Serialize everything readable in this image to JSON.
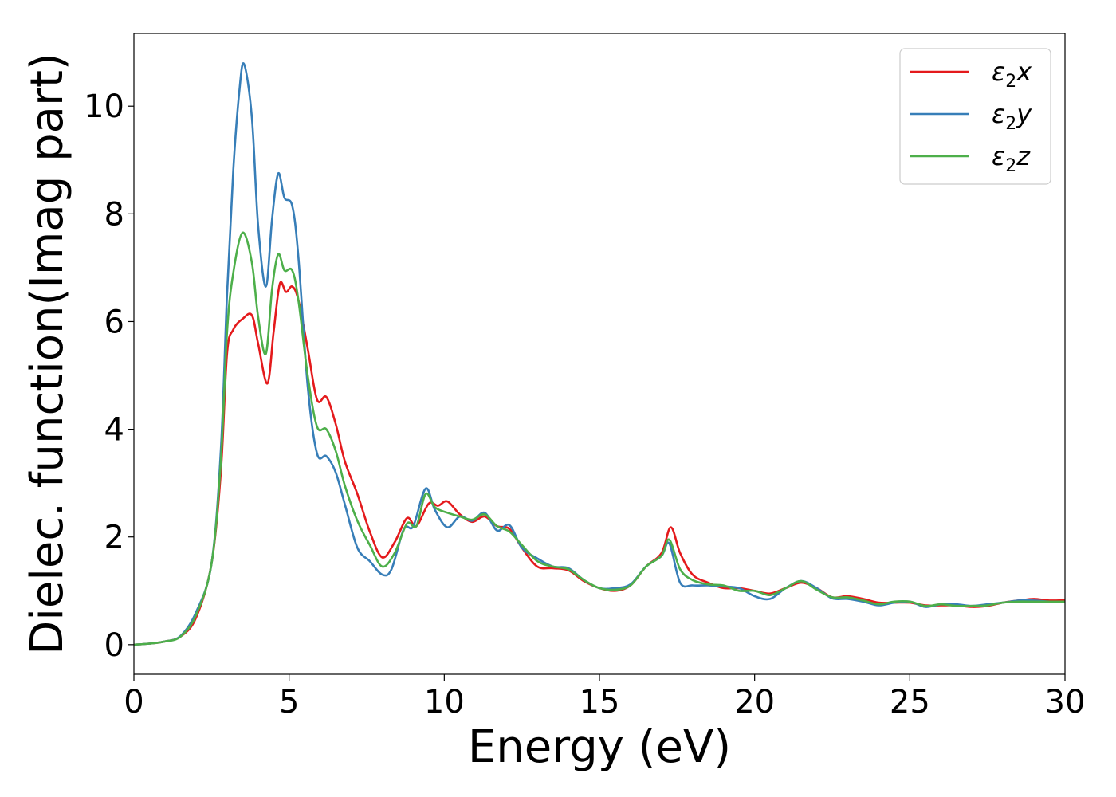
{
  "chart_data": {
    "type": "line",
    "title": "",
    "xlabel": "Energy (eV)",
    "ylabel": "Dielec. function(Imag part)",
    "xlim": [
      0,
      30
    ],
    "ylim": [
      -0.55,
      11.35
    ],
    "xticks": [
      0,
      5,
      10,
      15,
      20,
      25,
      30
    ],
    "yticks": [
      0,
      2,
      4,
      6,
      8,
      10
    ],
    "grid": false,
    "legend_position": "top-right",
    "series": [
      {
        "name": "ε2x",
        "legend_base": "ε",
        "legend_sub": "2",
        "legend_var": "x",
        "color": "#e41a1c",
        "points": [
          [
            0,
            0
          ],
          [
            0.5,
            0.02
          ],
          [
            1,
            0.06
          ],
          [
            1.5,
            0.15
          ],
          [
            2,
            0.5
          ],
          [
            2.5,
            1.5
          ],
          [
            2.8,
            3.2
          ],
          [
            3.0,
            5.4
          ],
          [
            3.2,
            5.85
          ],
          [
            3.5,
            6.05
          ],
          [
            3.8,
            6.12
          ],
          [
            4.0,
            5.6
          ],
          [
            4.3,
            4.85
          ],
          [
            4.5,
            5.8
          ],
          [
            4.7,
            6.7
          ],
          [
            4.9,
            6.55
          ],
          [
            5.1,
            6.65
          ],
          [
            5.3,
            6.4
          ],
          [
            5.6,
            5.5
          ],
          [
            5.9,
            4.55
          ],
          [
            6.2,
            4.6
          ],
          [
            6.5,
            4.1
          ],
          [
            6.8,
            3.4
          ],
          [
            7.2,
            2.8
          ],
          [
            7.6,
            2.1
          ],
          [
            8.0,
            1.62
          ],
          [
            8.4,
            1.9
          ],
          [
            8.8,
            2.35
          ],
          [
            9.1,
            2.2
          ],
          [
            9.5,
            2.62
          ],
          [
            9.8,
            2.58
          ],
          [
            10.1,
            2.66
          ],
          [
            10.5,
            2.42
          ],
          [
            10.9,
            2.28
          ],
          [
            11.3,
            2.38
          ],
          [
            11.7,
            2.2
          ],
          [
            12.1,
            2.15
          ],
          [
            12.5,
            1.8
          ],
          [
            13.0,
            1.45
          ],
          [
            13.5,
            1.42
          ],
          [
            14.0,
            1.38
          ],
          [
            14.5,
            1.18
          ],
          [
            15.0,
            1.05
          ],
          [
            15.5,
            1.0
          ],
          [
            16.0,
            1.1
          ],
          [
            16.5,
            1.45
          ],
          [
            17.0,
            1.7
          ],
          [
            17.3,
            2.18
          ],
          [
            17.6,
            1.7
          ],
          [
            18.0,
            1.3
          ],
          [
            18.5,
            1.15
          ],
          [
            19.0,
            1.05
          ],
          [
            19.5,
            1.05
          ],
          [
            20.0,
            1.0
          ],
          [
            20.5,
            0.95
          ],
          [
            21.0,
            1.05
          ],
          [
            21.5,
            1.15
          ],
          [
            22.0,
            1.05
          ],
          [
            22.5,
            0.88
          ],
          [
            23.0,
            0.9
          ],
          [
            23.5,
            0.85
          ],
          [
            24.0,
            0.78
          ],
          [
            24.5,
            0.78
          ],
          [
            25.0,
            0.78
          ],
          [
            25.5,
            0.73
          ],
          [
            26.0,
            0.73
          ],
          [
            26.5,
            0.73
          ],
          [
            27.0,
            0.7
          ],
          [
            27.5,
            0.72
          ],
          [
            28.0,
            0.78
          ],
          [
            28.5,
            0.82
          ],
          [
            29.0,
            0.85
          ],
          [
            29.5,
            0.82
          ],
          [
            30.0,
            0.83
          ]
        ]
      },
      {
        "name": "ε2y",
        "legend_base": "ε",
        "legend_sub": "2",
        "legend_var": "y",
        "color": "#377eb8",
        "points": [
          [
            0,
            0
          ],
          [
            0.5,
            0.02
          ],
          [
            1,
            0.06
          ],
          [
            1.5,
            0.16
          ],
          [
            2,
            0.6
          ],
          [
            2.5,
            1.5
          ],
          [
            2.8,
            3.6
          ],
          [
            3.0,
            6.5
          ],
          [
            3.2,
            8.8
          ],
          [
            3.4,
            10.3
          ],
          [
            3.55,
            10.78
          ],
          [
            3.8,
            9.8
          ],
          [
            4.0,
            7.8
          ],
          [
            4.25,
            6.65
          ],
          [
            4.45,
            7.9
          ],
          [
            4.65,
            8.75
          ],
          [
            4.85,
            8.3
          ],
          [
            5.1,
            8.15
          ],
          [
            5.3,
            7.2
          ],
          [
            5.6,
            4.8
          ],
          [
            5.9,
            3.55
          ],
          [
            6.2,
            3.5
          ],
          [
            6.5,
            3.2
          ],
          [
            6.8,
            2.6
          ],
          [
            7.2,
            1.8
          ],
          [
            7.6,
            1.55
          ],
          [
            8.0,
            1.3
          ],
          [
            8.3,
            1.4
          ],
          [
            8.7,
            2.15
          ],
          [
            9.0,
            2.2
          ],
          [
            9.4,
            2.9
          ],
          [
            9.7,
            2.5
          ],
          [
            10.1,
            2.18
          ],
          [
            10.5,
            2.38
          ],
          [
            10.9,
            2.3
          ],
          [
            11.3,
            2.45
          ],
          [
            11.7,
            2.12
          ],
          [
            12.1,
            2.22
          ],
          [
            12.5,
            1.8
          ],
          [
            13.0,
            1.6
          ],
          [
            13.5,
            1.45
          ],
          [
            14.0,
            1.42
          ],
          [
            14.5,
            1.2
          ],
          [
            15.0,
            1.05
          ],
          [
            15.5,
            1.05
          ],
          [
            16.0,
            1.12
          ],
          [
            16.5,
            1.45
          ],
          [
            17.0,
            1.65
          ],
          [
            17.25,
            1.88
          ],
          [
            17.6,
            1.15
          ],
          [
            18.0,
            1.1
          ],
          [
            18.5,
            1.1
          ],
          [
            19.0,
            1.08
          ],
          [
            19.5,
            1.05
          ],
          [
            20.0,
            0.9
          ],
          [
            20.5,
            0.85
          ],
          [
            21.0,
            1.05
          ],
          [
            21.5,
            1.18
          ],
          [
            22.0,
            1.05
          ],
          [
            22.5,
            0.86
          ],
          [
            23.0,
            0.85
          ],
          [
            23.5,
            0.8
          ],
          [
            24.0,
            0.73
          ],
          [
            24.5,
            0.78
          ],
          [
            25.0,
            0.8
          ],
          [
            25.5,
            0.7
          ],
          [
            26.0,
            0.75
          ],
          [
            26.5,
            0.75
          ],
          [
            27.0,
            0.72
          ],
          [
            27.5,
            0.75
          ],
          [
            28.0,
            0.78
          ],
          [
            28.5,
            0.82
          ],
          [
            29.0,
            0.82
          ],
          [
            29.5,
            0.8
          ],
          [
            30.0,
            0.8
          ]
        ]
      },
      {
        "name": "ε2z",
        "legend_base": "ε",
        "legend_sub": "2",
        "legend_var": "z",
        "color": "#4daf4a",
        "points": [
          [
            0,
            0
          ],
          [
            0.5,
            0.02
          ],
          [
            1,
            0.06
          ],
          [
            1.5,
            0.15
          ],
          [
            2,
            0.55
          ],
          [
            2.5,
            1.5
          ],
          [
            2.8,
            3.4
          ],
          [
            3.0,
            5.8
          ],
          [
            3.2,
            6.9
          ],
          [
            3.5,
            7.65
          ],
          [
            3.8,
            7.1
          ],
          [
            4.0,
            6.1
          ],
          [
            4.25,
            5.4
          ],
          [
            4.45,
            6.6
          ],
          [
            4.65,
            7.25
          ],
          [
            4.85,
            6.95
          ],
          [
            5.1,
            6.95
          ],
          [
            5.3,
            6.4
          ],
          [
            5.6,
            5.0
          ],
          [
            5.9,
            4.05
          ],
          [
            6.2,
            4.0
          ],
          [
            6.5,
            3.6
          ],
          [
            6.8,
            2.95
          ],
          [
            7.2,
            2.3
          ],
          [
            7.6,
            1.85
          ],
          [
            8.0,
            1.45
          ],
          [
            8.4,
            1.7
          ],
          [
            8.8,
            2.25
          ],
          [
            9.1,
            2.2
          ],
          [
            9.4,
            2.8
          ],
          [
            9.7,
            2.55
          ],
          [
            10.1,
            2.45
          ],
          [
            10.5,
            2.38
          ],
          [
            10.9,
            2.32
          ],
          [
            11.3,
            2.42
          ],
          [
            11.7,
            2.2
          ],
          [
            12.1,
            2.1
          ],
          [
            12.5,
            1.85
          ],
          [
            13.0,
            1.55
          ],
          [
            13.5,
            1.45
          ],
          [
            14.0,
            1.4
          ],
          [
            14.5,
            1.2
          ],
          [
            15.0,
            1.05
          ],
          [
            15.5,
            1.02
          ],
          [
            16.0,
            1.1
          ],
          [
            16.5,
            1.45
          ],
          [
            17.0,
            1.65
          ],
          [
            17.25,
            1.95
          ],
          [
            17.6,
            1.4
          ],
          [
            18.0,
            1.2
          ],
          [
            18.5,
            1.12
          ],
          [
            19.0,
            1.1
          ],
          [
            19.5,
            1.0
          ],
          [
            20.0,
            1.0
          ],
          [
            20.5,
            0.92
          ],
          [
            21.0,
            1.05
          ],
          [
            21.5,
            1.18
          ],
          [
            22.0,
            1.02
          ],
          [
            22.5,
            0.88
          ],
          [
            23.0,
            0.88
          ],
          [
            23.5,
            0.82
          ],
          [
            24.0,
            0.75
          ],
          [
            24.5,
            0.8
          ],
          [
            25.0,
            0.8
          ],
          [
            25.5,
            0.72
          ],
          [
            26.0,
            0.75
          ],
          [
            26.5,
            0.72
          ],
          [
            27.0,
            0.72
          ],
          [
            27.5,
            0.73
          ],
          [
            28.0,
            0.78
          ],
          [
            28.5,
            0.8
          ],
          [
            29.0,
            0.8
          ],
          [
            29.5,
            0.8
          ],
          [
            30.0,
            0.8
          ]
        ]
      }
    ]
  }
}
